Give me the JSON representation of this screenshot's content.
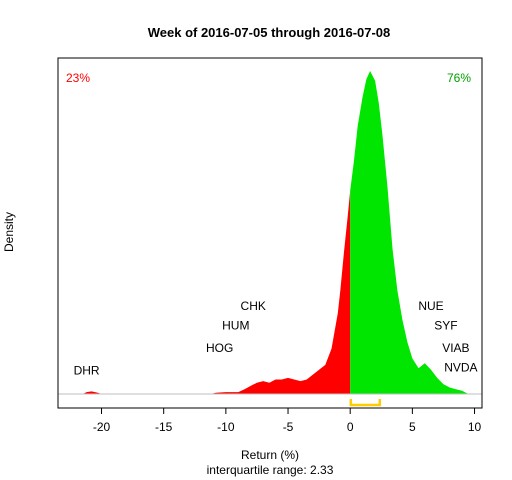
{
  "chart_data": {
    "type": "area",
    "title": "Week of 2016-07-05 through 2016-07-08",
    "xlabel": "Return (%)",
    "ylabel": "Density",
    "subtitle": "interquartile range: 2.33",
    "xlim": [
      -23.5,
      10.6
    ],
    "ylim": [
      0,
      1
    ],
    "x_ticks": [
      -20,
      -15,
      -10,
      -5,
      0,
      5,
      10
    ],
    "x_tick_labels": [
      "-20",
      "-15",
      "-10",
      "-5",
      "0",
      "5",
      "10"
    ],
    "split_at": 0,
    "pct_negative": "23%",
    "pct_positive": "76%",
    "negative_color": "#ff0000",
    "positive_color": "#00e600",
    "iqr": [
      0.05,
      2.38
    ],
    "iqr_color": "#ffcc00",
    "density_points": [
      [
        -21.5,
        0.0
      ],
      [
        -21.2,
        0.006
      ],
      [
        -20.8,
        0.008
      ],
      [
        -20.3,
        0.004
      ],
      [
        -20.0,
        0.0
      ],
      [
        -11.2,
        0.0
      ],
      [
        -10.8,
        0.004
      ],
      [
        -10.0,
        0.006
      ],
      [
        -9.0,
        0.006
      ],
      [
        -8.5,
        0.015
      ],
      [
        -8.0,
        0.025
      ],
      [
        -7.5,
        0.035
      ],
      [
        -7.0,
        0.04
      ],
      [
        -6.5,
        0.035
      ],
      [
        -6.0,
        0.045
      ],
      [
        -5.5,
        0.045
      ],
      [
        -5.0,
        0.05
      ],
      [
        -4.5,
        0.045
      ],
      [
        -4.0,
        0.04
      ],
      [
        -3.5,
        0.045
      ],
      [
        -3.0,
        0.06
      ],
      [
        -2.5,
        0.075
      ],
      [
        -2.0,
        0.09
      ],
      [
        -1.5,
        0.14
      ],
      [
        -1.0,
        0.25
      ],
      [
        -0.8,
        0.32
      ],
      [
        -0.5,
        0.44
      ],
      [
        -0.2,
        0.55
      ],
      [
        0.0,
        0.63
      ],
      [
        0.3,
        0.72
      ],
      [
        0.6,
        0.83
      ],
      [
        1.0,
        0.92
      ],
      [
        1.3,
        0.975
      ],
      [
        1.6,
        1.0
      ],
      [
        2.0,
        0.97
      ],
      [
        2.3,
        0.9
      ],
      [
        2.6,
        0.8
      ],
      [
        3.0,
        0.64
      ],
      [
        3.4,
        0.45
      ],
      [
        3.8,
        0.32
      ],
      [
        4.2,
        0.23
      ],
      [
        4.6,
        0.16
      ],
      [
        5.0,
        0.11
      ],
      [
        5.5,
        0.08
      ],
      [
        6.0,
        0.095
      ],
      [
        6.5,
        0.075
      ],
      [
        7.0,
        0.05
      ],
      [
        7.5,
        0.03
      ],
      [
        8.0,
        0.02
      ],
      [
        8.5,
        0.015
      ],
      [
        9.0,
        0.01
      ],
      [
        9.5,
        0.0
      ]
    ],
    "annotations": [
      {
        "label": "DHR",
        "x": -21.2,
        "y": 0.06
      },
      {
        "label": "CHK",
        "x": -7.8,
        "y": 0.26
      },
      {
        "label": "HUM",
        "x": -9.2,
        "y": 0.2
      },
      {
        "label": "HOG",
        "x": -10.5,
        "y": 0.13
      },
      {
        "label": "NUE",
        "x": 6.5,
        "y": 0.26
      },
      {
        "label": "SYF",
        "x": 7.7,
        "y": 0.2
      },
      {
        "label": "VIAB",
        "x": 8.5,
        "y": 0.13
      },
      {
        "label": "NVDA",
        "x": 8.9,
        "y": 0.07
      }
    ]
  }
}
